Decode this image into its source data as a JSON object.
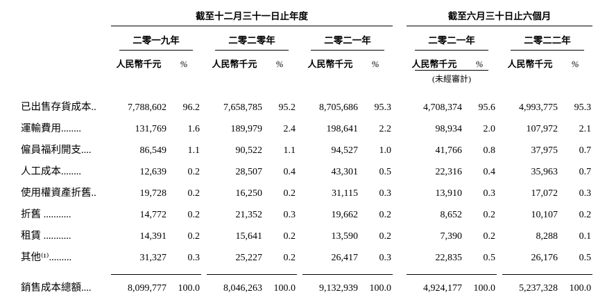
{
  "table": {
    "period_groups": [
      {
        "label": "截至十二月三十一日止年度"
      },
      {
        "label": "截至六月三十日止六個月"
      }
    ],
    "year_headers": [
      "二零一九年",
      "二零二零年",
      "二零二一年",
      "二零二一年",
      "二零二二年"
    ],
    "unit_label": "人民幣千元",
    "pct_label": "%",
    "unaudited_note": "(未經審計)",
    "rows": [
      {
        "label": "已出售存貨成本..",
        "cells": [
          "7,788,602",
          "96.2",
          "7,658,785",
          "95.2",
          "8,705,686",
          "95.3",
          "4,708,374",
          "95.6",
          "4,993,775",
          "95.3"
        ]
      },
      {
        "label": "運輸費用........",
        "cells": [
          "131,769",
          "1.6",
          "189,979",
          "2.4",
          "198,641",
          "2.2",
          "98,934",
          "2.0",
          "107,972",
          "2.1"
        ]
      },
      {
        "label": "僱員福利開支....",
        "cells": [
          "86,549",
          "1.1",
          "90,522",
          "1.1",
          "94,527",
          "1.0",
          "41,766",
          "0.8",
          "37,975",
          "0.7"
        ]
      },
      {
        "label": "人工成本........",
        "cells": [
          "12,639",
          "0.2",
          "28,507",
          "0.4",
          "43,301",
          "0.5",
          "22,316",
          "0.4",
          "35,963",
          "0.7"
        ]
      },
      {
        "label": "使用權資產折舊..",
        "cells": [
          "19,728",
          "0.2",
          "16,250",
          "0.2",
          "31,115",
          "0.3",
          "13,910",
          "0.3",
          "17,072",
          "0.3"
        ]
      },
      {
        "label": "折舊 ...........",
        "cells": [
          "14,772",
          "0.2",
          "21,352",
          "0.3",
          "19,662",
          "0.2",
          "8,652",
          "0.2",
          "10,107",
          "0.2"
        ]
      },
      {
        "label": "租賃 ...........",
        "cells": [
          "14,391",
          "0.2",
          "15,641",
          "0.2",
          "13,590",
          "0.2",
          "7,390",
          "0.2",
          "8,288",
          "0.1"
        ]
      },
      {
        "label": "其他⁽¹⁾.........",
        "cells": [
          "31,327",
          "0.3",
          "25,227",
          "0.2",
          "26,417",
          "0.3",
          "22,835",
          "0.5",
          "26,176",
          "0.5"
        ]
      }
    ],
    "total_row": {
      "label": "銷售成本總額....",
      "cells": [
        "8,099,777",
        "100.0",
        "8,046,263",
        "100.0",
        "9,132,939",
        "100.0",
        "4,924,177",
        "100.0",
        "5,237,328",
        "100.0"
      ]
    }
  }
}
